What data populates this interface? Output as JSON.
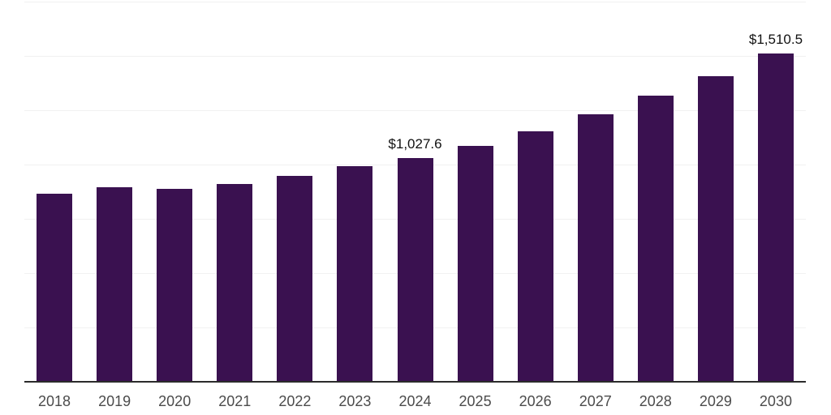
{
  "chart_data": {
    "type": "bar",
    "title": "",
    "xlabel": "",
    "ylabel": "",
    "categories": [
      "2018",
      "2019",
      "2020",
      "2021",
      "2022",
      "2023",
      "2024",
      "2025",
      "2026",
      "2027",
      "2028",
      "2029",
      "2030"
    ],
    "values": [
      865,
      895,
      885,
      910,
      945,
      990,
      1027.6,
      1085,
      1150,
      1230,
      1315,
      1405,
      1510.5
    ],
    "bar_labels": [
      "",
      "",
      "",
      "",
      "",
      "",
      "$1,027.6",
      "",
      "",
      "",
      "",
      "",
      "$1,510.5"
    ],
    "ylim": [
      0,
      1750
    ],
    "grid": true,
    "gridline_count": 7,
    "legend": false,
    "y_axis_ticks_visible": false
  },
  "colors": {
    "bar": "#3A1150",
    "gridline": "#F1F1F1",
    "axis_line": "#2B2B2B",
    "axis_label": "#4B4B4B",
    "data_label": "#111111",
    "background": "#FFFFFF"
  }
}
